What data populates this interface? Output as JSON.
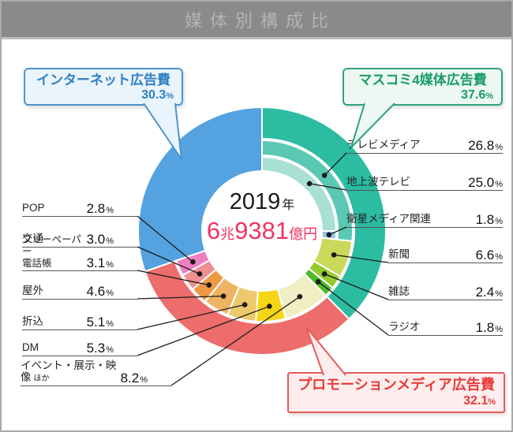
{
  "header": {
    "title": "媒体別構成比"
  },
  "percent_sign": "%",
  "center": {
    "year": "2019",
    "year_unit": "年",
    "amount_a": "6",
    "amount_a_unit": "兆",
    "amount_b": "9381",
    "amount_b_unit": "億円"
  },
  "callouts": {
    "internet": {
      "title": "インターネット広告費",
      "pct": "30.3",
      "text_color": "#2e7fc2",
      "border_color": "#4a94d0",
      "bg_color": "#eaf4fc"
    },
    "mass_media": {
      "title": "マスコミ4媒体広告費",
      "pct": "37.6",
      "text_color": "#179b67",
      "border_color": "#2ea577",
      "bg_color": "#edf8f2"
    },
    "promotion": {
      "title": "プロモーションメディア広告費",
      "pct": "32.1",
      "text_color": "#e83a3a",
      "border_color": "#e45c5c",
      "bg_color": "#fdeeed"
    }
  },
  "labels": {
    "right": [
      {
        "text": "テレビメディア",
        "pct": "26.8"
      },
      {
        "text": "地上波テレビ",
        "pct": "25.0"
      },
      {
        "text": "衛星メディア関連",
        "pct": "1.8"
      },
      {
        "text": "新聞",
        "pct": "6.6"
      },
      {
        "text": "雑誌",
        "pct": "2.4"
      },
      {
        "text": "ラジオ",
        "pct": "1.8"
      }
    ],
    "left": [
      {
        "text": "POP",
        "pct": "2.8"
      },
      {
        "text": "交通",
        "pct": "3.0"
      },
      {
        "text": "フリーペーパー",
        "text2": "電話帳",
        "pct": "3.1"
      },
      {
        "text": "屋外",
        "pct": "4.6"
      },
      {
        "text": "折込",
        "pct": "5.1"
      },
      {
        "text": "DM",
        "pct": "5.3"
      },
      {
        "text": "イベント・展示・映像",
        "note": "ほか",
        "pct": "8.2"
      }
    ]
  },
  "chart_data": {
    "type": "donut",
    "title": "媒体別構成比",
    "center_label": "2019年 6兆9381億円",
    "unit": "%",
    "main_series": [
      {
        "key": "mass-media",
        "name": "マスコミ4媒体広告費",
        "value": 37.6,
        "color": "#2bbca2"
      },
      {
        "key": "promotion",
        "name": "プロモーションメディア広告費",
        "value": 32.1,
        "color": "#ed6c6c"
      },
      {
        "key": "internet",
        "name": "インターネット広告費",
        "value": 30.3,
        "color": "#55a2e0",
        "full_width": true
      }
    ],
    "tv_media": {
      "key": "tv-media",
      "name": "テレビメディア",
      "value": 26.8,
      "color": "#5bc8b4"
    },
    "tv_breakdown": [
      {
        "key": "terrestrial-tv",
        "name": "地上波テレビ",
        "value": 25.0,
        "color": "#a8e0d4"
      },
      {
        "key": "satellite-media",
        "name": "衛星メディア関連",
        "value": 1.8,
        "color": "#8fc6e9"
      }
    ],
    "sub_series": [
      {
        "key": "newspaper",
        "name": "新聞",
        "value": 6.6,
        "color": "#c9d95a"
      },
      {
        "key": "magazine",
        "name": "雑誌",
        "value": 2.4,
        "color": "#93cc2f"
      },
      {
        "key": "radio",
        "name": "ラジオ",
        "value": 1.8,
        "color": "#4fb92b"
      },
      {
        "key": "event",
        "name": "イベント・展示・映像ほか",
        "value": 8.2,
        "color": "#f0eec2"
      },
      {
        "key": "dm",
        "name": "DM",
        "value": 5.3,
        "color": "#f6d517"
      },
      {
        "key": "orikomi",
        "name": "折込",
        "value": 5.1,
        "color": "#ecc96a"
      },
      {
        "key": "outdoor",
        "name": "屋外",
        "value": 4.6,
        "color": "#efb364"
      },
      {
        "key": "free-paper",
        "name": "フリーペーパー・電話帳",
        "value": 3.1,
        "color": "#ef9843"
      },
      {
        "key": "transit",
        "name": "交通",
        "value": 3.0,
        "color": "#ef8f8f"
      },
      {
        "key": "pop",
        "name": "POP",
        "value": 2.8,
        "color": "#f07ec2"
      }
    ]
  }
}
